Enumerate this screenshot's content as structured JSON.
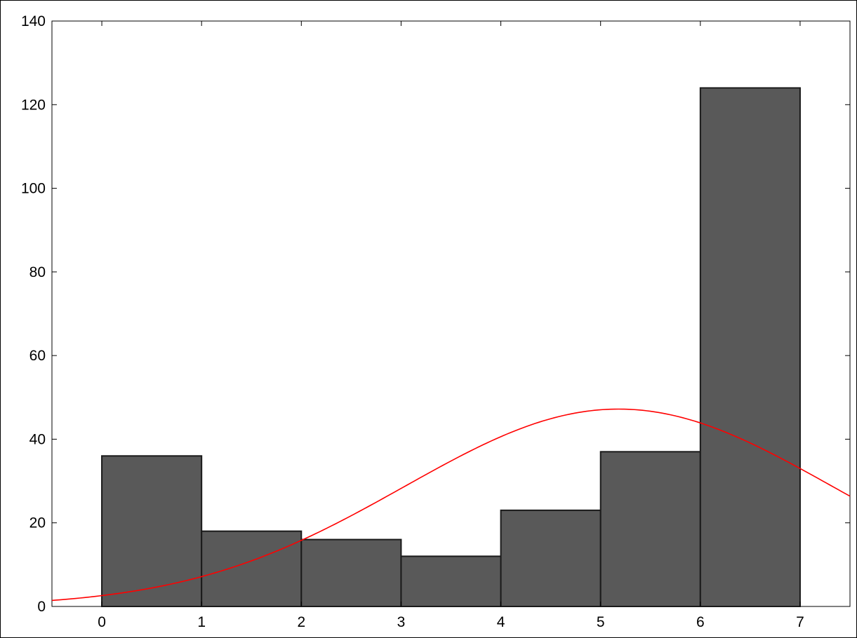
{
  "chart_data": {
    "type": "bar",
    "bins": [
      {
        "x0": 0,
        "x1": 1,
        "count": 36
      },
      {
        "x0": 1,
        "x1": 2,
        "count": 18
      },
      {
        "x0": 2,
        "x1": 3,
        "count": 16
      },
      {
        "x0": 3,
        "x1": 4,
        "count": 12
      },
      {
        "x0": 4,
        "x1": 5,
        "count": 23
      },
      {
        "x0": 5,
        "x1": 6,
        "count": 37
      },
      {
        "x0": 6,
        "x1": 7,
        "count": 124
      }
    ],
    "fitted_normal": {
      "mean": 5.18,
      "sd": 2.15,
      "peak": 47.2
    },
    "xlim": [
      -0.5,
      7.5
    ],
    "ylim": [
      0,
      140
    ],
    "x_ticks": [
      0,
      1,
      2,
      3,
      4,
      5,
      6,
      7
    ],
    "y_ticks": [
      0,
      20,
      40,
      60,
      80,
      100,
      120,
      140
    ],
    "grid": false,
    "title": "",
    "xlabel": "",
    "ylabel": "",
    "bar_color": "#595959",
    "bar_edge_color": "#1a1a1a",
    "curve_color": "#ff0000"
  }
}
